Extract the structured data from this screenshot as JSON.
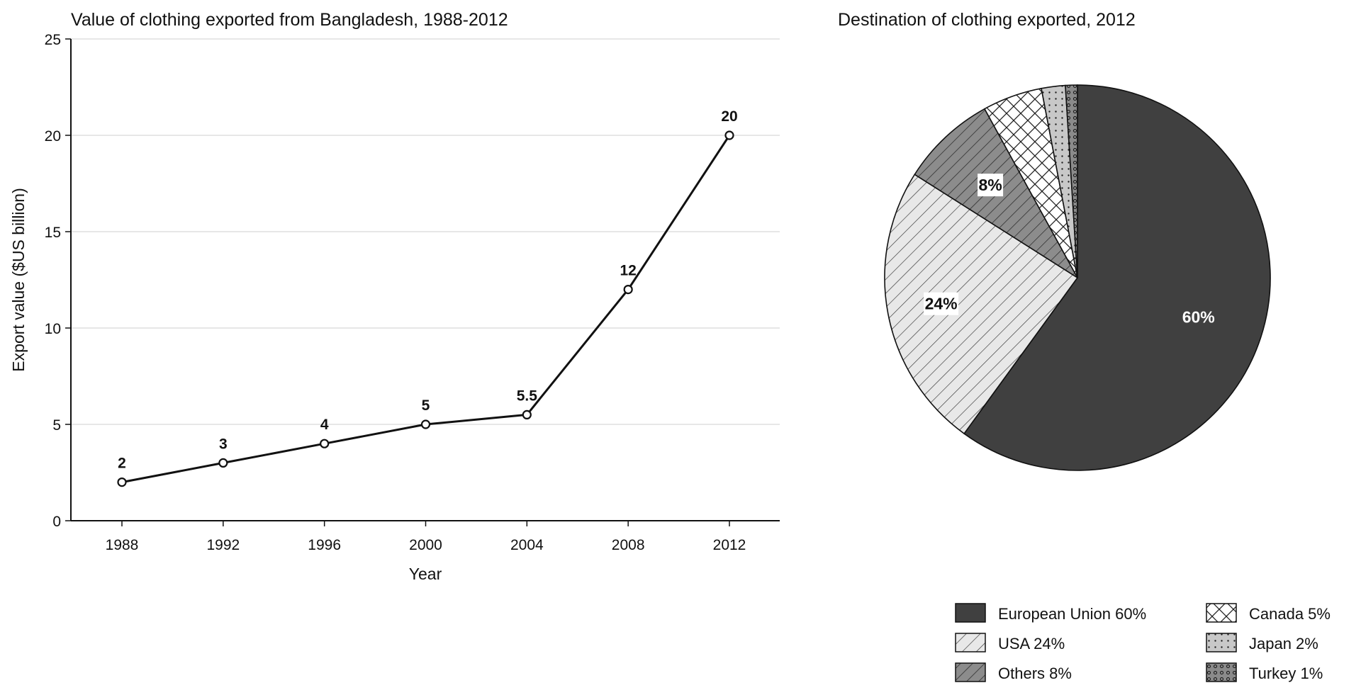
{
  "chart_data": [
    {
      "type": "line",
      "title": "Value of clothing exported from Bangladesh, 1988-2012",
      "xlabel": "Year",
      "ylabel": "Export value ($US billion)",
      "ylim": [
        0,
        25
      ],
      "yticks": [
        0,
        5,
        10,
        15,
        20,
        25
      ],
      "grid": "horizontal",
      "x": [
        1988,
        1992,
        1996,
        2000,
        2004,
        2008,
        2012
      ],
      "xtick_labels": [
        "1988",
        "1992",
        "1996",
        "2000",
        "2004",
        "2008",
        "2012"
      ],
      "values": [
        2,
        3,
        4,
        5,
        5.5,
        12,
        20
      ],
      "data_labels": [
        "2",
        "3",
        "4",
        "5",
        "5.5",
        "12",
        "20"
      ]
    },
    {
      "type": "pie",
      "title": "Destination of clothing exported, 2012",
      "legend_position": "bottom-right",
      "slices": [
        {
          "label": "European Union",
          "value": 60,
          "legend": "European Union  60%",
          "data_label": "60%",
          "pattern": "solid-dark",
          "color": "#404040"
        },
        {
          "label": "USA",
          "value": 24,
          "legend": "USA  24%",
          "data_label": "24%",
          "pattern": "diagonal-light",
          "color": "#e8e8e8"
        },
        {
          "label": "Others",
          "value": 8,
          "legend": "Others  8%",
          "data_label": "8%",
          "pattern": "diagonal-dark",
          "color": "#8c8c8c"
        },
        {
          "label": "Canada",
          "value": 5,
          "legend": "Canada  5%",
          "data_label": "",
          "pattern": "crosshatch",
          "color": "#ffffff"
        },
        {
          "label": "Japan",
          "value": 2,
          "legend": "Japan  2%",
          "data_label": "",
          "pattern": "dots",
          "color": "#c8c8c8"
        },
        {
          "label": "Turkey",
          "value": 1,
          "legend": "Turkey  1%",
          "data_label": "",
          "pattern": "circles",
          "color": "#8a8a8a"
        }
      ]
    }
  ]
}
